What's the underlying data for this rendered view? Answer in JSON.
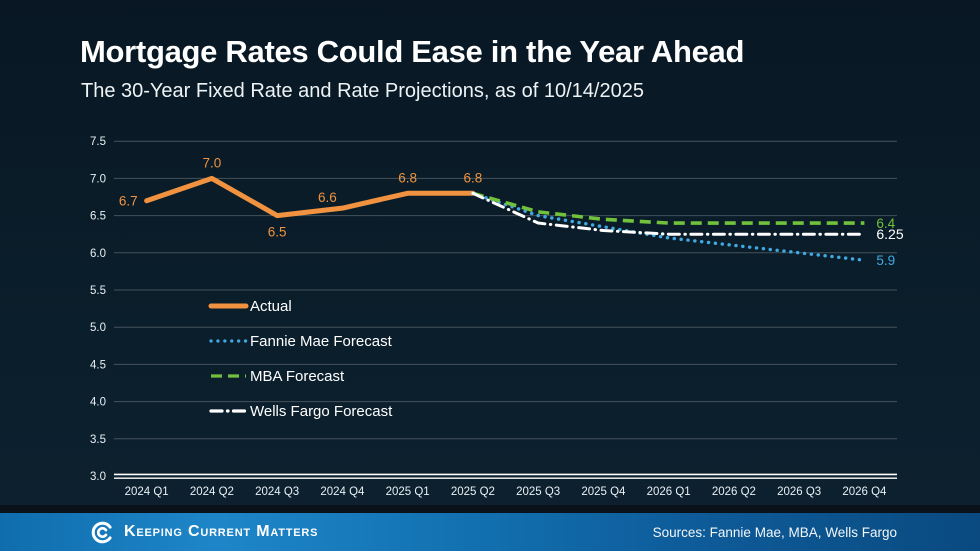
{
  "title": "Mortgage Rates Could Ease in the Year Ahead",
  "subtitle": "The 30-Year Fixed Rate and Rate Projections, as of 10/14/2025",
  "colors": {
    "background": "#0a1c28",
    "grid": "#44525c",
    "axis_line": "#ffffff",
    "tick_text": "#eaf0f4",
    "actual_orange": "#f0923f",
    "fannie_blue": "#41a9e2",
    "mba_green": "#72c13d",
    "wells_white": "#ffffff",
    "footer_blue_left": "#1e86c8",
    "footer_blue_right": "#0a4a80"
  },
  "chart_data": {
    "type": "line",
    "title": "The 30-Year Fixed Rate and Rate Projections, as of 10/14/2025",
    "categories": [
      "2024 Q1",
      "2024 Q2",
      "2024 Q3",
      "2024 Q4",
      "2025 Q1",
      "2025 Q2",
      "2025 Q3",
      "2025 Q4",
      "2026 Q1",
      "2026 Q2",
      "2026 Q3",
      "2026 Q4"
    ],
    "ylim": [
      3.0,
      7.5
    ],
    "ytick_step": 0.5,
    "yticks": [
      "3.0",
      "3.5",
      "4.0",
      "4.5",
      "5.0",
      "5.5",
      "6.0",
      "6.5",
      "7.0",
      "7.5"
    ],
    "grid": "horizontal",
    "legend_position": "inside-left",
    "series": [
      {
        "name": "Actual",
        "color": "#f0923f",
        "style": "solid",
        "x_start_index": 0,
        "values": [
          6.7,
          7.0,
          6.5,
          6.6,
          6.8,
          6.8
        ],
        "point_labels": [
          "6.7",
          "7.0",
          "6.5",
          "6.6",
          "6.8",
          "6.8"
        ]
      },
      {
        "name": "Fannie Mae Forecast",
        "color": "#41a9e2",
        "style": "dotted",
        "x_start_index": 5,
        "values": [
          6.8,
          6.5,
          6.35,
          6.2,
          6.1,
          6.0,
          5.9
        ],
        "end_label": "5.9"
      },
      {
        "name": "MBA Forecast",
        "color": "#72c13d",
        "style": "dashed",
        "x_start_index": 5,
        "values": [
          6.8,
          6.55,
          6.45,
          6.4,
          6.4,
          6.4,
          6.4
        ],
        "end_label": "6.4"
      },
      {
        "name": "Wells Fargo Forecast",
        "color": "#ffffff",
        "style": "dashdot",
        "x_start_index": 5,
        "values": [
          6.8,
          6.4,
          6.3,
          6.25,
          6.25,
          6.25,
          6.25
        ],
        "end_label": "6.25"
      }
    ],
    "legend": [
      "Actual",
      "Fannie Mae Forecast",
      "MBA Forecast",
      "Wells Fargo Forecast"
    ]
  },
  "footer": {
    "brand": "Keeping Current Matters",
    "sources": "Sources: Fannie Mae, MBA, Wells Fargo"
  }
}
